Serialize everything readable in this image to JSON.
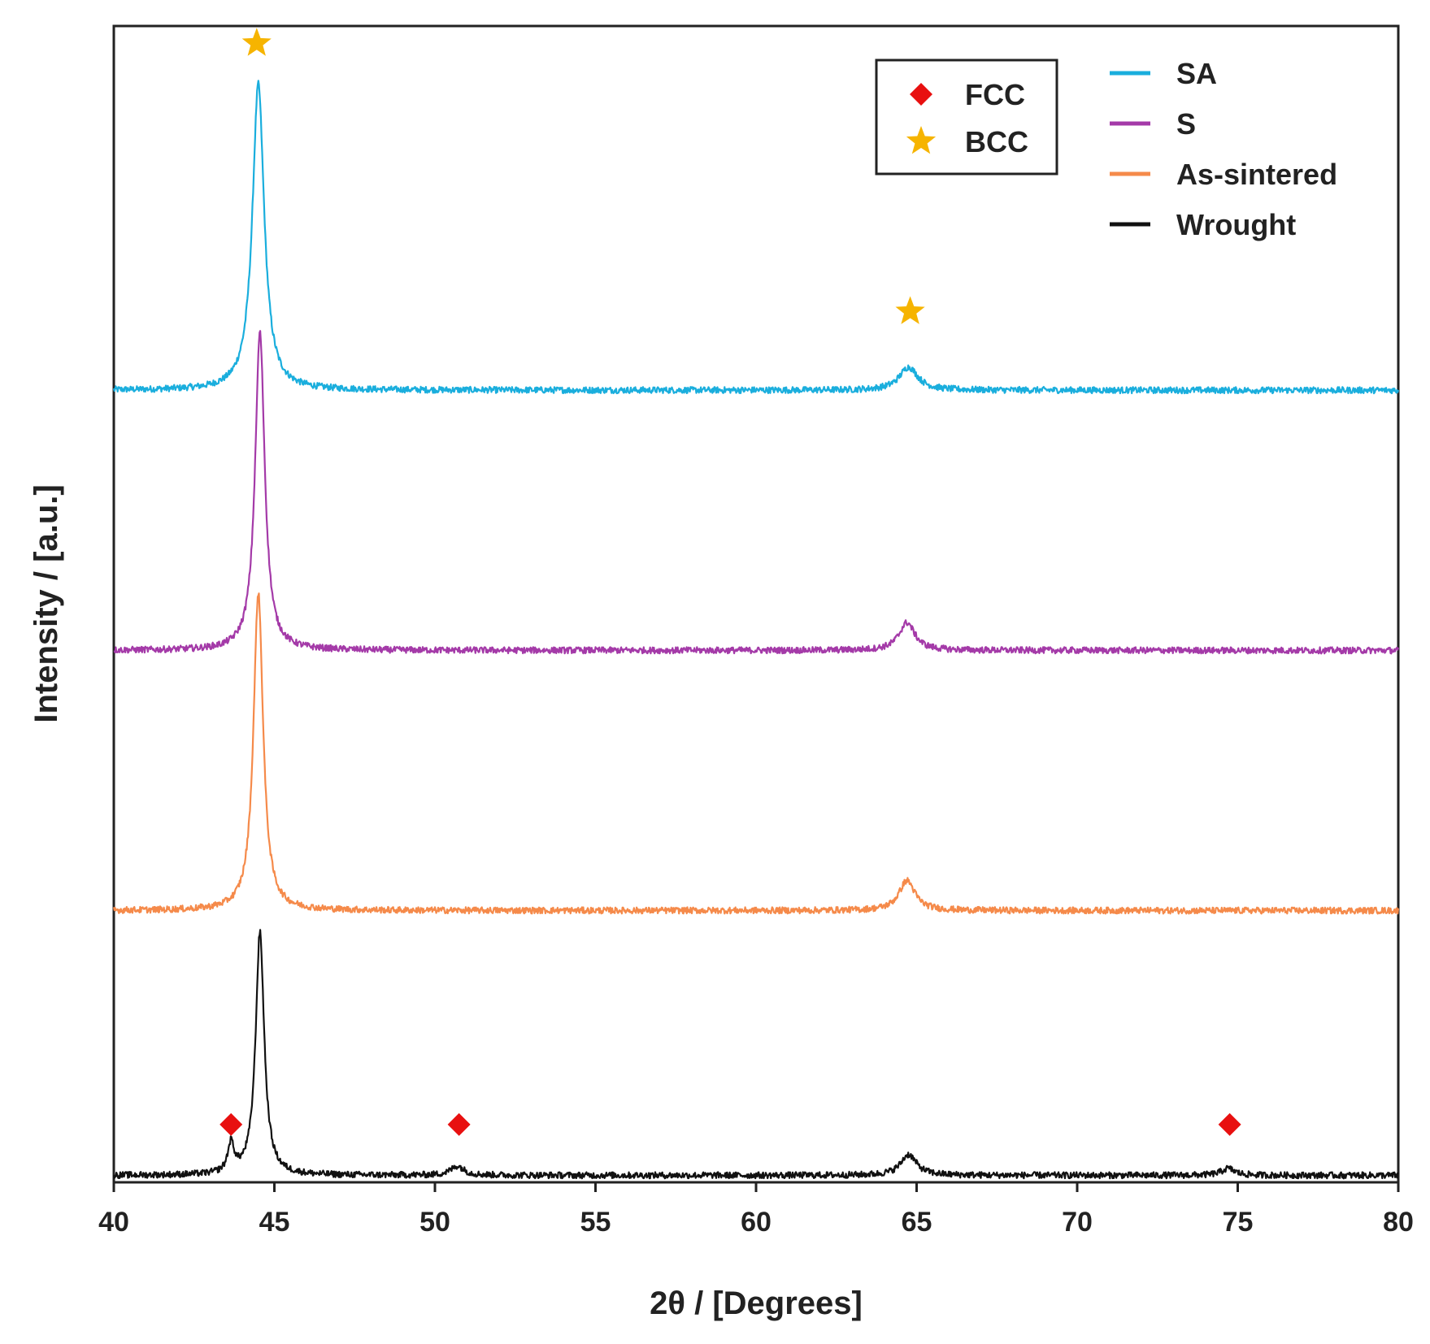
{
  "chart_data": {
    "type": "line",
    "title": "",
    "xlabel": "2θ / [Degrees]",
    "ylabel": "Intensity / [a.u.]",
    "xlim": [
      40,
      80
    ],
    "xticks": [
      "40",
      "45",
      "50",
      "55",
      "60",
      "65",
      "70",
      "75",
      "80"
    ],
    "ylim": [
      0,
      100
    ],
    "grid": false,
    "legend_position": "top-right",
    "series": [
      {
        "name": "SA",
        "color": "#1aaedd",
        "baseline": 68.5,
        "peaks": [
          {
            "x": 44.5,
            "height": 26.5,
            "width": 0.22
          },
          {
            "x": 64.75,
            "height": 2.0,
            "width": 0.35
          }
        ]
      },
      {
        "name": "S",
        "color": "#a43aa8",
        "baseline": 46.0,
        "peaks": [
          {
            "x": 44.55,
            "height": 27.5,
            "width": 0.18
          },
          {
            "x": 64.7,
            "height": 2.4,
            "width": 0.3
          }
        ]
      },
      {
        "name": "As-sintered",
        "color": "#f58a4a",
        "baseline": 23.5,
        "peaks": [
          {
            "x": 44.5,
            "height": 27.5,
            "width": 0.18
          },
          {
            "x": 64.7,
            "height": 2.6,
            "width": 0.3
          }
        ]
      },
      {
        "name": "Wrought",
        "color": "#111111",
        "baseline": 0.6,
        "peaks": [
          {
            "x": 43.65,
            "height": 2.5,
            "width": 0.12
          },
          {
            "x": 44.55,
            "height": 21.0,
            "width": 0.16
          },
          {
            "x": 50.7,
            "height": 0.8,
            "width": 0.25
          },
          {
            "x": 64.75,
            "height": 1.8,
            "width": 0.3
          },
          {
            "x": 74.7,
            "height": 0.6,
            "width": 0.25
          }
        ]
      }
    ],
    "phase_legend": [
      {
        "label": "FCC",
        "symbol": "diamond",
        "color": "#e81010"
      },
      {
        "label": "BCC",
        "symbol": "star",
        "color": "#f6b400"
      }
    ],
    "annotations": [
      {
        "symbol": "star",
        "phase": "BCC",
        "x": 44.45,
        "y": 98.5
      },
      {
        "symbol": "star",
        "phase": "BCC",
        "x": 64.8,
        "y": 75.3
      },
      {
        "symbol": "diamond",
        "phase": "FCC",
        "x": 43.65,
        "y": 5.0
      },
      {
        "symbol": "diamond",
        "phase": "FCC",
        "x": 50.75,
        "y": 5.0
      },
      {
        "symbol": "diamond",
        "phase": "FCC",
        "x": 74.75,
        "y": 5.0
      }
    ]
  }
}
